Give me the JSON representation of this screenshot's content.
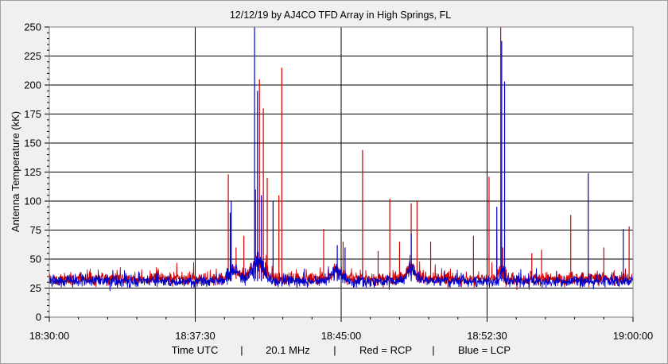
{
  "chart_data": {
    "type": "line",
    "title": "12/12/19  by  AJ4CO TFD Array  in  High Springs, FL",
    "ylabel": "Antenna Temperature (kK)",
    "ylim": [
      0,
      250
    ],
    "yticks": [
      0,
      25,
      50,
      75,
      100,
      125,
      150,
      175,
      200,
      225,
      250
    ],
    "xlim": [
      0,
      30
    ],
    "xticks": [
      {
        "value": 0,
        "label": "18:30:00"
      },
      {
        "value": 7.5,
        "label": "18:37:30"
      },
      {
        "value": 15,
        "label": "18:45:00"
      },
      {
        "value": 22.5,
        "label": "18:52:30"
      },
      {
        "value": 30,
        "label": "19:00:00"
      }
    ],
    "xminor_step": 1.5,
    "yminor_step": 5,
    "grid": true,
    "footer": [
      "Time UTC",
      "|",
      "20.1 MHz",
      "|",
      "Red = RCP",
      "|",
      "Blue = LCP"
    ],
    "baseline": {
      "red_mean": 33,
      "blue_mean": 31,
      "red_noise": 4,
      "blue_noise": 3.5
    },
    "series": [
      {
        "name": "RCP",
        "color": "#d00000",
        "spikes": [
          [
            9.2,
            123
          ],
          [
            9.6,
            60
          ],
          [
            10.0,
            70
          ],
          [
            10.6,
            110
          ],
          [
            10.8,
            205
          ],
          [
            11.0,
            180
          ],
          [
            11.2,
            120
          ],
          [
            11.8,
            105
          ],
          [
            11.95,
            215
          ],
          [
            14.1,
            76
          ],
          [
            15.1,
            65
          ],
          [
            16.1,
            144
          ],
          [
            16.9,
            57
          ],
          [
            17.5,
            102
          ],
          [
            18.0,
            65
          ],
          [
            18.6,
            98
          ],
          [
            18.9,
            100
          ],
          [
            19.6,
            65
          ],
          [
            21.8,
            70
          ],
          [
            22.6,
            121
          ],
          [
            23.0,
            73
          ],
          [
            23.3,
            60
          ],
          [
            23.2,
            250
          ],
          [
            24.8,
            55
          ],
          [
            25.3,
            58
          ],
          [
            26.8,
            88
          ],
          [
            28.5,
            60
          ],
          [
            29.8,
            78
          ]
        ],
        "bumps": [
          [
            9.5,
            0.35,
            8
          ],
          [
            10.7,
            0.45,
            15
          ],
          [
            14.8,
            0.3,
            8
          ],
          [
            18.6,
            0.3,
            10
          ],
          [
            23.2,
            0.15,
            10
          ]
        ]
      },
      {
        "name": "LCP",
        "color": "#0000c8",
        "spikes": [
          [
            9.3,
            90
          ],
          [
            9.35,
            100
          ],
          [
            10.55,
            250
          ],
          [
            10.7,
            195
          ],
          [
            10.9,
            105
          ],
          [
            11.5,
            100
          ],
          [
            14.8,
            62
          ],
          [
            15.2,
            60
          ],
          [
            18.6,
            72
          ],
          [
            23.0,
            95
          ],
          [
            23.25,
            238
          ],
          [
            23.4,
            203
          ],
          [
            27.7,
            124
          ],
          [
            29.5,
            76
          ]
        ],
        "bumps": [
          [
            9.5,
            0.35,
            10
          ],
          [
            10.7,
            0.4,
            18
          ],
          [
            14.8,
            0.35,
            9
          ],
          [
            18.6,
            0.3,
            11
          ],
          [
            23.3,
            0.12,
            10
          ]
        ]
      }
    ]
  }
}
